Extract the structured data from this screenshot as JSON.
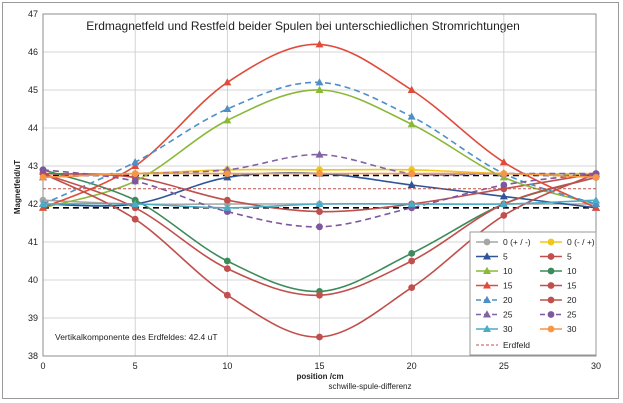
{
  "chart_data": {
    "type": "line",
    "title": "Erdmagnetfeld und Restfeld beider Spulen bei unterschiedlichen Stromrichtungen",
    "xlabel": "position /cm",
    "ylabel": "Magnetfeld/uT",
    "subtitle": "schwille-spule-differenz",
    "annotation": "Vertikalkomponente des Erdfeldes: 42.4 uT",
    "xlim": [
      0,
      30
    ],
    "ylim": [
      38,
      47
    ],
    "xticks": [
      0,
      5,
      10,
      15,
      20,
      25,
      30
    ],
    "yticks": [
      38,
      39,
      40,
      41,
      42,
      43,
      44,
      45,
      46,
      47
    ],
    "grid": true,
    "legend_position": "bottom-right",
    "x": [
      0,
      5,
      10,
      15,
      20,
      25,
      30
    ],
    "series": [
      {
        "name": "0 (+ / -)",
        "color": "#a6a6a6",
        "dashed": false,
        "marker": "circle",
        "values": [
          42.1,
          42.0,
          42.0,
          42.0,
          42.0,
          42.0,
          42.0
        ]
      },
      {
        "name": "0 (- / +)",
        "color": "#f2c518",
        "dashed": false,
        "marker": "circle",
        "values": [
          42.8,
          42.8,
          42.9,
          42.9,
          42.9,
          42.8,
          42.8
        ]
      },
      {
        "name": "5",
        "color": "#2f5597",
        "dashed": false,
        "marker": "triangle",
        "values": [
          42.0,
          42.0,
          42.7,
          42.8,
          42.5,
          42.2,
          41.9
        ]
      },
      {
        "name": "5",
        "color": "#c0504d",
        "dashed": false,
        "marker": "circle",
        "values": [
          42.8,
          42.7,
          42.1,
          41.8,
          42.0,
          42.4,
          42.8
        ]
      },
      {
        "name": "10",
        "color": "#8ab838",
        "dashed": false,
        "marker": "triangle",
        "values": [
          41.9,
          42.6,
          44.2,
          45.0,
          44.1,
          42.7,
          42.0
        ]
      },
      {
        "name": "10",
        "color": "#3d8b5a",
        "dashed": false,
        "marker": "circle",
        "values": [
          42.9,
          42.1,
          40.5,
          39.7,
          40.7,
          42.0,
          42.7
        ]
      },
      {
        "name": "15",
        "color": "#e04b3c",
        "dashed": false,
        "marker": "triangle",
        "values": [
          41.9,
          43.0,
          45.2,
          46.2,
          45.0,
          43.1,
          41.9
        ]
      },
      {
        "name": "15",
        "color": "#c0504d",
        "dashed": false,
        "marker": "circle",
        "values": [
          42.8,
          41.6,
          39.6,
          38.5,
          39.8,
          41.7,
          42.8
        ]
      },
      {
        "name": "20",
        "color": "#4f8fc7",
        "dashed": true,
        "marker": "triangle",
        "values": [
          42.0,
          43.1,
          44.5,
          45.2,
          44.3,
          42.8,
          42.0
        ]
      },
      {
        "name": "20",
        "color": "#c0504d",
        "dashed": false,
        "marker": "circle",
        "values": [
          42.8,
          41.9,
          40.3,
          39.6,
          40.5,
          42.0,
          42.7
        ]
      },
      {
        "name": "25",
        "color": "#8064a2",
        "dashed": true,
        "marker": "triangle",
        "values": [
          42.7,
          42.8,
          42.9,
          43.3,
          42.8,
          42.8,
          42.8
        ]
      },
      {
        "name": "25",
        "color": "#7e57a0",
        "dashed": true,
        "marker": "circle",
        "values": [
          42.9,
          42.6,
          41.8,
          41.4,
          41.9,
          42.5,
          42.8
        ]
      },
      {
        "name": "30",
        "color": "#4bacc6",
        "dashed": false,
        "marker": "triangle",
        "values": [
          42.0,
          42.0,
          41.9,
          42.0,
          42.0,
          42.0,
          42.1
        ]
      },
      {
        "name": "30",
        "color": "#f79646",
        "dashed": false,
        "marker": "circle",
        "values": [
          42.7,
          42.8,
          42.8,
          42.8,
          42.8,
          42.8,
          42.7
        ]
      },
      {
        "name": "Erdfeld",
        "color": "#c0504d",
        "dashed": true,
        "marker": "none",
        "values": [
          42.4,
          42.4,
          42.4,
          42.4,
          42.4,
          42.4,
          42.4
        ]
      }
    ],
    "reference_lines": [
      {
        "name": "",
        "color": "#000000",
        "dashed": true,
        "values": [
          41.9,
          41.9,
          41.9,
          41.9,
          41.9,
          41.9,
          41.9
        ]
      },
      {
        "name": "",
        "color": "#000000",
        "dashed": true,
        "values": [
          42.75,
          42.75,
          42.75,
          42.75,
          42.75,
          42.75,
          42.75
        ]
      }
    ]
  }
}
